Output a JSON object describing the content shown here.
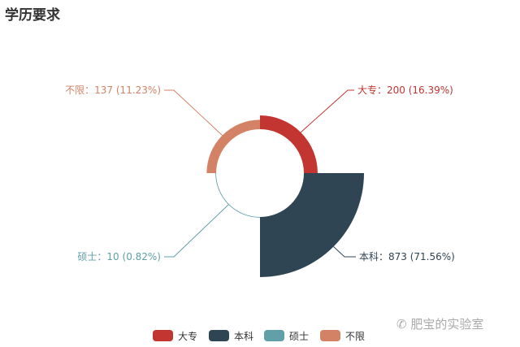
{
  "title": "学历要求",
  "watermark": "肥宝的实验室",
  "chart_data": {
    "type": "pie",
    "variant": "rose-area",
    "title": "学历要求",
    "categories": [
      "大专",
      "本科",
      "硕士",
      "不限"
    ],
    "values": [
      200,
      873,
      10,
      137
    ],
    "labels": [
      "大专：200 (16.39%)",
      "本科：873 (71.56%)",
      "硕士：10 (0.82%)",
      "不限：137 (11.23%)"
    ],
    "colors": [
      "#c23531",
      "#2f4554",
      "#61a0a8",
      "#d48265"
    ],
    "legend": {
      "placement": "bottom",
      "entries": [
        "大专",
        "本科",
        "硕士",
        "不限"
      ]
    }
  }
}
